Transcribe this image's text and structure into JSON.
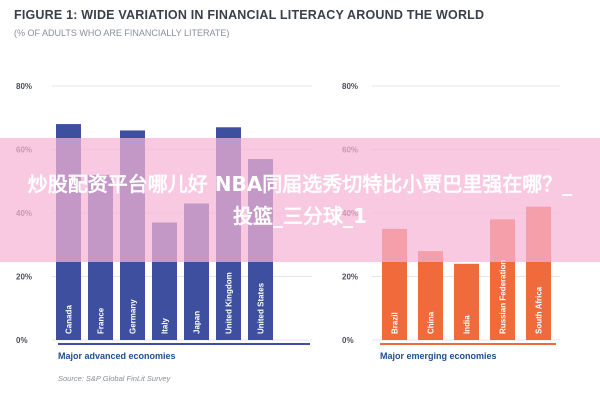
{
  "title": "FIGURE 1: WIDE VARIATION IN FINANCIAL LITERACY AROUND THE WORLD",
  "subtitle": "(% OF ADULTS WHO ARE FINANCIALLY LITERATE)",
  "source": "Source: S&P Global FinLit Survey",
  "overlay_text": "炒股配资平台哪儿好 NBA同届选秀切特比小贾巴里强在哪？_投篮_三分球_1",
  "chart_data": [
    {
      "type": "bar",
      "panel_label": "Major advanced economies",
      "categories": [
        "Canada",
        "France",
        "Germany",
        "Italy",
        "Japan",
        "United Kingdom",
        "United States"
      ],
      "values": [
        68,
        52,
        66,
        37,
        43,
        67,
        57
      ],
      "ylim": [
        0,
        80
      ],
      "yticks": [
        "0%",
        "20%",
        "40%",
        "60%",
        "80%"
      ],
      "color": "#3d4f9e",
      "grid": true
    },
    {
      "type": "bar",
      "panel_label": "Major emerging economies",
      "categories": [
        "Brazil",
        "China",
        "India",
        "Russian Federation",
        "South Africa"
      ],
      "values": [
        35,
        28,
        24,
        38,
        42
      ],
      "ylim": [
        0,
        80
      ],
      "yticks": [
        "0%",
        "20%",
        "40%",
        "60%",
        "80%"
      ],
      "color": "#f06a3c",
      "grid": true
    }
  ]
}
